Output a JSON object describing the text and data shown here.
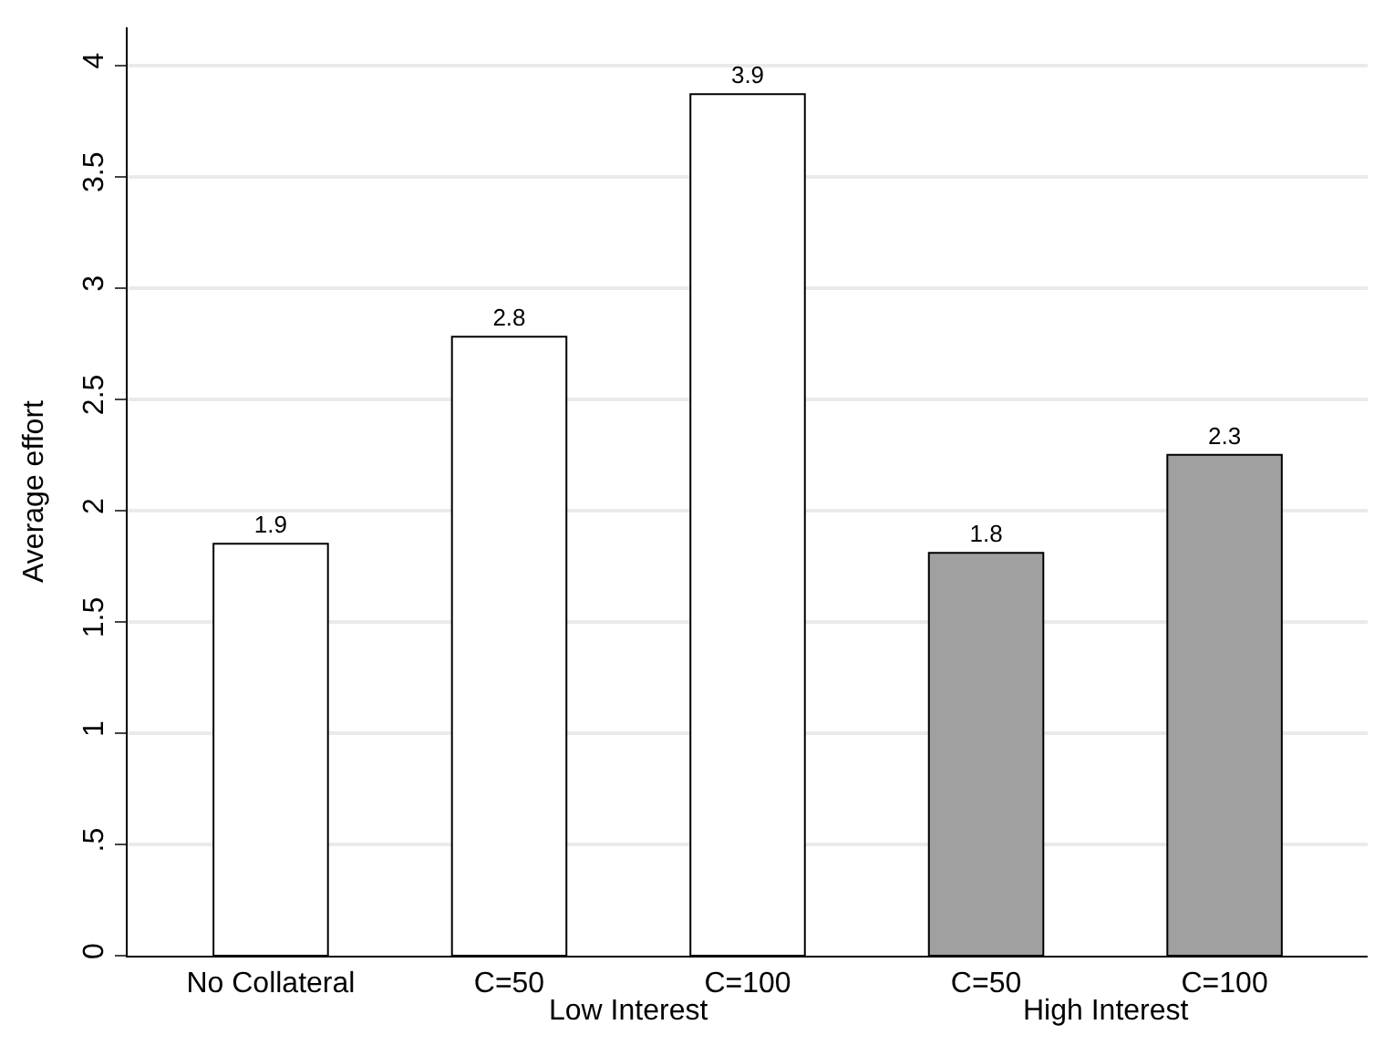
{
  "chart_data": {
    "type": "bar",
    "ylabel": "Average effort",
    "categories": [
      "No Collateral",
      "C=50",
      "C=100",
      "C=50",
      "C=100"
    ],
    "values": [
      1.85,
      2.78,
      3.87,
      1.81,
      2.25
    ],
    "value_labels": [
      "1.9",
      "2.8",
      "3.9",
      "1.8",
      "2.3"
    ],
    "colors": [
      "#ffffff",
      "#ffffff",
      "#ffffff",
      "#a0a0a0",
      "#a0a0a0"
    ],
    "ylim": [
      0,
      4.17
    ],
    "yticks": [
      0,
      {
        "value": 0.5,
        "label": ".5"
      },
      1,
      1.5,
      2,
      2.5,
      3,
      3.5,
      4
    ],
    "annotations": [
      "Low Interest",
      "High Interest"
    ],
    "grid": "y",
    "legend": false
  }
}
